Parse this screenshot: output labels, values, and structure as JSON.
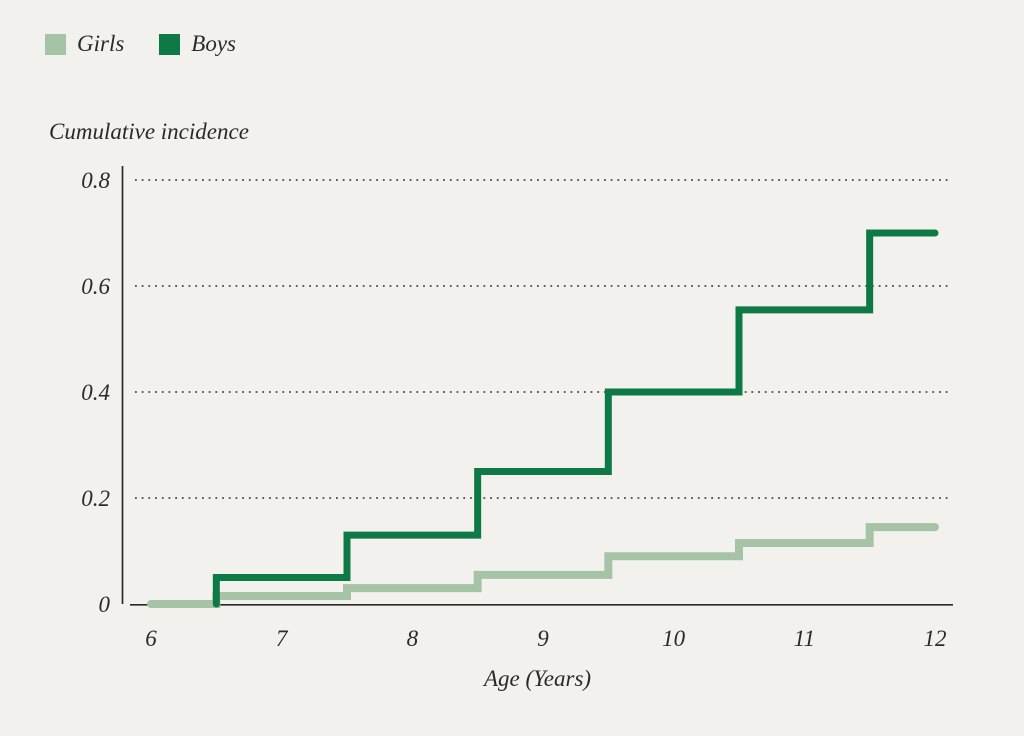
{
  "page": {
    "background": "#f2f1ee"
  },
  "legend": {
    "items": [
      {
        "label": "Girls",
        "color": "#a5c3a5"
      },
      {
        "label": "Boys",
        "color": "#0d7a45"
      }
    ]
  },
  "chart_data": {
    "type": "line",
    "line_style": "step-after",
    "title": "Cumulative incidence",
    "xlabel": "Age (Years)",
    "ylabel": "Cumulative incidence",
    "xlim": [
      6,
      12
    ],
    "ylim": [
      0,
      0.8
    ],
    "grid": "horizontal dotted lines at 0.2, 0.4, 0.6, 0.8",
    "legend_position": "top-left",
    "xticks": [
      {
        "v": 6,
        "label": "6"
      },
      {
        "v": 7,
        "label": "7"
      },
      {
        "v": 8,
        "label": "8"
      },
      {
        "v": 9,
        "label": "9"
      },
      {
        "v": 10,
        "label": "10"
      },
      {
        "v": 11,
        "label": "11"
      },
      {
        "v": 12,
        "label": "12"
      }
    ],
    "yticks": [
      {
        "v": 0,
        "label": "0"
      },
      {
        "v": 0.2,
        "label": "0.2"
      },
      {
        "v": 0.4,
        "label": "0.4"
      },
      {
        "v": 0.6,
        "label": "0.6"
      },
      {
        "v": 0.8,
        "label": "0.8"
      }
    ],
    "series": [
      {
        "name": "Girls",
        "color": "#a5c3a5",
        "stroke_width": 8,
        "points": [
          [
            6,
            0
          ],
          [
            6.5,
            0.015
          ],
          [
            7.5,
            0.03
          ],
          [
            8.5,
            0.055
          ],
          [
            9.5,
            0.09
          ],
          [
            10.5,
            0.115
          ],
          [
            11.5,
            0.145
          ],
          [
            12,
            0.145
          ]
        ]
      },
      {
        "name": "Boys",
        "color": "#0d7a45",
        "stroke_width": 7,
        "points": [
          [
            6.5,
            0
          ],
          [
            6.5,
            0.05
          ],
          [
            7.5,
            0.13
          ],
          [
            8.5,
            0.25
          ],
          [
            9.5,
            0.4
          ],
          [
            10.5,
            0.555
          ],
          [
            11.5,
            0.7
          ],
          [
            12,
            0.7
          ]
        ]
      }
    ],
    "colors": {
      "background": "#f2f1ee",
      "axis": "#2b2a27",
      "gridline": "#484846",
      "text": "#2b2a27"
    }
  }
}
